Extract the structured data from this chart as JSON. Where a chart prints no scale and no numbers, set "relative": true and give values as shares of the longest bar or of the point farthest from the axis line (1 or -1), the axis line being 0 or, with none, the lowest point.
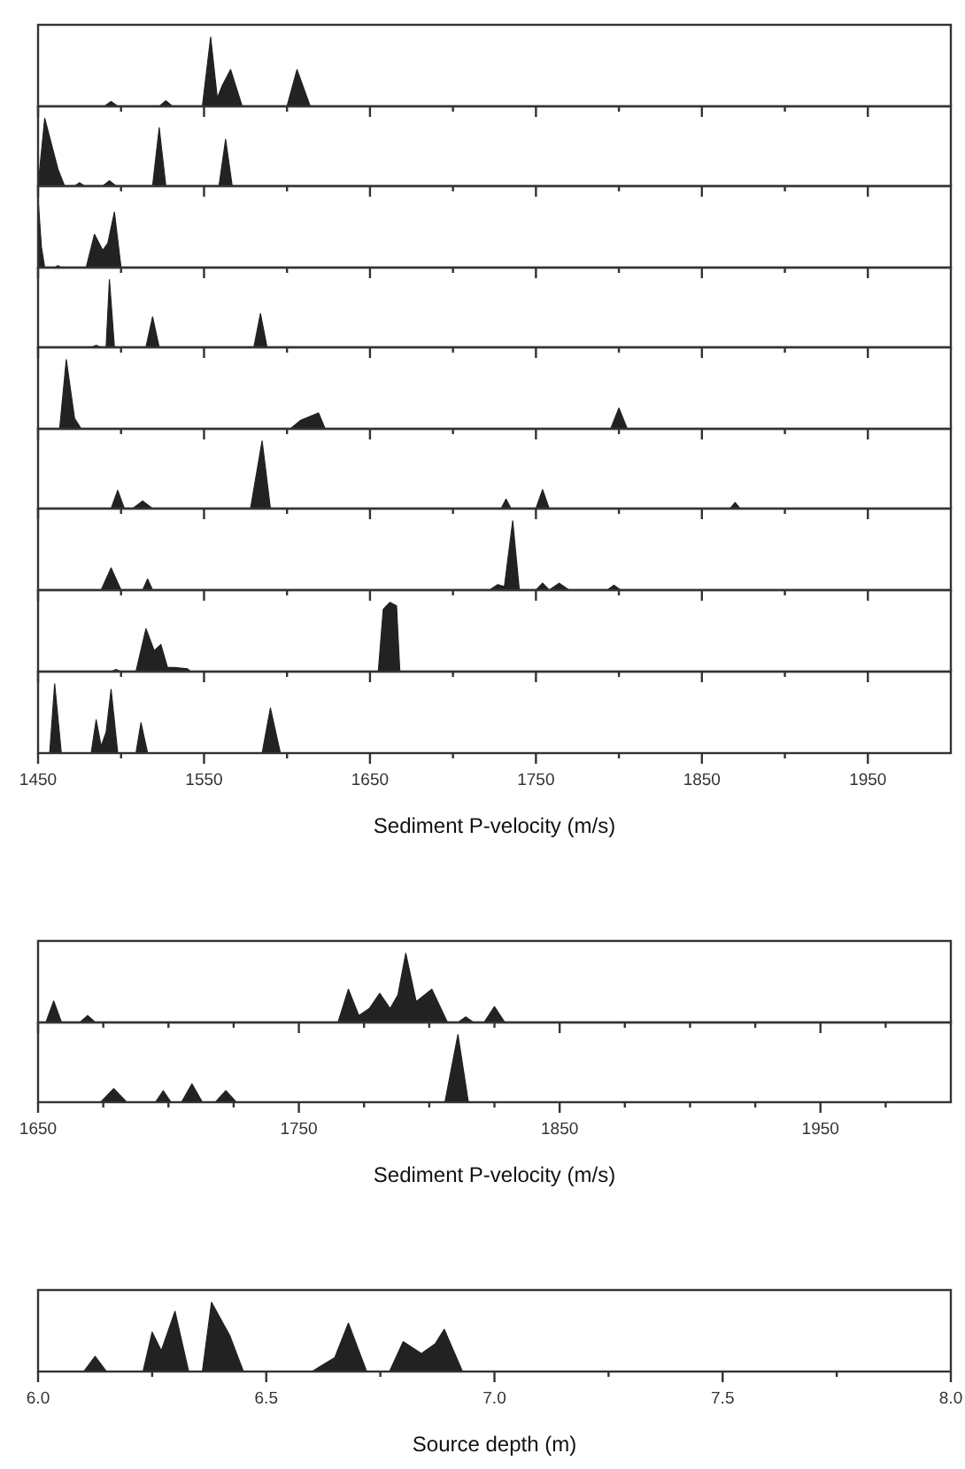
{
  "chart_data": [
    {
      "type": "area",
      "relative": true,
      "color": "#222222",
      "xlim": [
        1450,
        2000
      ],
      "xticks": [
        1450,
        {
          "value": 1500,
          "label": null
        },
        1550,
        {
          "value": 1600,
          "label": null
        },
        1650,
        {
          "value": 1700,
          "label": null
        },
        1750,
        {
          "value": 1800,
          "label": null
        },
        1850,
        {
          "value": 1900,
          "label": null
        },
        1950
      ],
      "tick_labels": false,
      "x": [
        1450,
        1490,
        1494,
        1498,
        1523,
        1527,
        1531,
        1549,
        1554,
        1558,
        1561,
        1566,
        1573,
        1600,
        1606,
        1614,
        2000
      ],
      "values": [
        0,
        0,
        0.07,
        0,
        0,
        0.08,
        0,
        0,
        1,
        0.12,
        0.3,
        0.53,
        0,
        0,
        0.53,
        0,
        0
      ]
    },
    {
      "type": "area",
      "relative": true,
      "color": "#222222",
      "xlim": [
        1450,
        2000
      ],
      "xticks": [
        1450,
        {
          "value": 1500,
          "label": null
        },
        1550,
        {
          "value": 1600,
          "label": null
        },
        1650,
        {
          "value": 1700,
          "label": null
        },
        1750,
        {
          "value": 1800,
          "label": null
        },
        1850,
        {
          "value": 1900,
          "label": null
        },
        1950
      ],
      "tick_labels": false,
      "x": [
        1450,
        1454,
        1462,
        1466,
        1472,
        1475,
        1478,
        1489,
        1493,
        1497,
        1519,
        1523,
        1527,
        1559,
        1563,
        1567,
        2000
      ],
      "values": [
        0,
        1,
        0.25,
        0,
        0,
        0.05,
        0,
        0,
        0.08,
        0,
        0,
        0.86,
        0,
        0,
        0.69,
        0,
        0
      ]
    },
    {
      "type": "area",
      "relative": true,
      "color": "#222222",
      "xlim": [
        1450,
        2000
      ],
      "xticks": [
        1450,
        {
          "value": 1500,
          "label": null
        },
        1550,
        {
          "value": 1600,
          "label": null
        },
        1650,
        {
          "value": 1700,
          "label": null
        },
        1750,
        {
          "value": 1800,
          "label": null
        },
        1850,
        {
          "value": 1900,
          "label": null
        },
        1950
      ],
      "tick_labels": false,
      "x": [
        1450,
        1452,
        1454,
        1460,
        1462,
        1464,
        1479,
        1484,
        1489,
        1492,
        1496,
        1500,
        2000
      ],
      "values": [
        1,
        0.3,
        0,
        0,
        0.03,
        0,
        0,
        0.48,
        0.25,
        0.35,
        0.8,
        0,
        0
      ]
    },
    {
      "type": "area",
      "relative": true,
      "color": "#222222",
      "xlim": [
        1450,
        2000
      ],
      "xticks": [
        1450,
        {
          "value": 1500,
          "label": null
        },
        1550,
        {
          "value": 1600,
          "label": null
        },
        1650,
        {
          "value": 1700,
          "label": null
        },
        1750,
        {
          "value": 1800,
          "label": null
        },
        1850,
        {
          "value": 1900,
          "label": null
        },
        1950
      ],
      "tick_labels": false,
      "x": [
        1450,
        1482,
        1485,
        1488,
        1491,
        1493,
        1496,
        1515,
        1519,
        1523,
        1580,
        1584,
        1588,
        2000
      ],
      "values": [
        0,
        0,
        0.03,
        0,
        0,
        1,
        0,
        0,
        0.45,
        0,
        0,
        0.5,
        0,
        0
      ]
    },
    {
      "type": "area",
      "relative": true,
      "color": "#222222",
      "xlim": [
        1450,
        2000
      ],
      "xticks": [
        1450,
        {
          "value": 1500,
          "label": null
        },
        1550,
        {
          "value": 1600,
          "label": null
        },
        1650,
        {
          "value": 1700,
          "label": null
        },
        1750,
        {
          "value": 1800,
          "label": null
        },
        1850,
        {
          "value": 1900,
          "label": null
        },
        1950
      ],
      "tick_labels": false,
      "x": [
        1450,
        1463,
        1467,
        1472,
        1476,
        1602,
        1608,
        1619,
        1623,
        1795,
        1800,
        1805,
        2000
      ],
      "values": [
        0,
        0,
        1,
        0.15,
        0,
        0,
        0.12,
        0.23,
        0,
        0,
        0.3,
        0,
        0
      ]
    },
    {
      "type": "area",
      "relative": true,
      "color": "#222222",
      "xlim": [
        1450,
        2000
      ],
      "xticks": [
        1450,
        {
          "value": 1500,
          "label": null
        },
        1550,
        {
          "value": 1600,
          "label": null
        },
        1650,
        {
          "value": 1700,
          "label": null
        },
        1750,
        {
          "value": 1800,
          "label": null
        },
        1850,
        {
          "value": 1900,
          "label": null
        },
        1950
      ],
      "tick_labels": false,
      "x": [
        1450,
        1494,
        1498,
        1502,
        1507,
        1513,
        1519,
        1578,
        1585,
        1590,
        1729,
        1732,
        1735,
        1750,
        1754,
        1758,
        1867,
        1870,
        1873,
        2000
      ],
      "values": [
        0,
        0,
        0.27,
        0,
        0,
        0.11,
        0,
        0,
        1,
        0,
        0,
        0.14,
        0,
        0,
        0.28,
        0,
        0,
        0.09,
        0,
        0
      ]
    },
    {
      "type": "area",
      "relative": true,
      "color": "#222222",
      "xlim": [
        1450,
        2000
      ],
      "xticks": [
        1450,
        {
          "value": 1500,
          "label": null
        },
        1550,
        {
          "value": 1600,
          "label": null
        },
        1650,
        {
          "value": 1700,
          "label": null
        },
        1750,
        {
          "value": 1800,
          "label": null
        },
        1850,
        {
          "value": 1900,
          "label": null
        },
        1950
      ],
      "tick_labels": false,
      "x": [
        1450,
        1488,
        1494,
        1500,
        1513,
        1516,
        1519,
        1722,
        1727,
        1731,
        1736,
        1740,
        1750,
        1754,
        1758,
        1764,
        1770,
        1793,
        1797,
        1801,
        2000
      ],
      "values": [
        0,
        0,
        0.32,
        0,
        0,
        0.16,
        0,
        0,
        0.08,
        0.05,
        1,
        0,
        0,
        0.1,
        0,
        0.1,
        0,
        0,
        0.07,
        0,
        0
      ]
    },
    {
      "type": "area",
      "relative": true,
      "color": "#222222",
      "xlim": [
        1450,
        2000
      ],
      "xticks": [
        1450,
        {
          "value": 1500,
          "label": null
        },
        1550,
        {
          "value": 1600,
          "label": null
        },
        1650,
        {
          "value": 1700,
          "label": null
        },
        1750,
        {
          "value": 1800,
          "label": null
        },
        1850,
        {
          "value": 1900,
          "label": null
        },
        1950
      ],
      "tick_labels": false,
      "x": [
        1450,
        1494,
        1497,
        1500,
        1509,
        1515,
        1520,
        1524,
        1528,
        1532,
        1536,
        1540,
        1542,
        1655,
        1658,
        1662,
        1666,
        1668,
        2000
      ],
      "values": [
        0,
        0,
        0.03,
        0,
        0,
        0.62,
        0.3,
        0.39,
        0.06,
        0.06,
        0.05,
        0.04,
        0,
        0,
        0.9,
        1,
        0.95,
        0,
        0
      ]
    },
    {
      "type": "area",
      "relative": true,
      "color": "#222222",
      "xlim": [
        1450,
        2000
      ],
      "xticks": [
        1450,
        {
          "value": 1500,
          "label": null
        },
        1550,
        {
          "value": 1600,
          "label": null
        },
        1650,
        {
          "value": 1700,
          "label": null
        },
        1750,
        {
          "value": 1800,
          "label": null
        },
        1850,
        {
          "value": 1900,
          "label": null
        },
        1950
      ],
      "tick_labels": "x",
      "xlabel": "Sediment P-velocity (m/s)",
      "x": [
        1450,
        1457,
        1460,
        1464,
        1482,
        1485,
        1488,
        1491,
        1494,
        1498,
        1509,
        1512,
        1516,
        1585,
        1590,
        1596,
        2000
      ],
      "values": [
        0,
        0,
        1,
        0,
        0,
        0.48,
        0.1,
        0.3,
        0.92,
        0,
        0,
        0.44,
        0,
        0,
        0.65,
        0,
        0
      ]
    },
    {
      "type": "area",
      "relative": true,
      "color": "#222222",
      "xlim": [
        1650,
        2000
      ],
      "xticks": [
        1650,
        {
          "value": 1675,
          "label": null
        },
        {
          "value": 1700,
          "label": null
        },
        {
          "value": 1725,
          "label": null
        },
        1750,
        {
          "value": 1775,
          "label": null
        },
        {
          "value": 1800,
          "label": null
        },
        {
          "value": 1825,
          "label": null
        },
        1850,
        {
          "value": 1875,
          "label": null
        },
        {
          "value": 1900,
          "label": null
        },
        {
          "value": 1925,
          "label": null
        },
        1950,
        {
          "value": 1975,
          "label": null
        }
      ],
      "tick_labels": false,
      "x": [
        1650,
        1653,
        1656,
        1659,
        1666,
        1669,
        1672,
        1765,
        1769,
        1773,
        1777,
        1781,
        1785,
        1788,
        1791,
        1795,
        1801,
        1807,
        1811,
        1814,
        1817,
        1821,
        1825,
        1829,
        2000
      ],
      "values": [
        0,
        0,
        0.31,
        0,
        0,
        0.1,
        0,
        0,
        0.48,
        0.1,
        0.2,
        0.42,
        0.2,
        0.4,
        1,
        0.3,
        0.48,
        0,
        0,
        0.08,
        0,
        0,
        0.23,
        0,
        0
      ]
    },
    {
      "type": "area",
      "relative": true,
      "color": "#222222",
      "xlim": [
        1650,
        2000
      ],
      "xticks": [
        1650,
        {
          "value": 1675,
          "label": null
        },
        {
          "value": 1700,
          "label": null
        },
        {
          "value": 1725,
          "label": null
        },
        1750,
        {
          "value": 1775,
          "label": null
        },
        {
          "value": 1800,
          "label": null
        },
        {
          "value": 1825,
          "label": null
        },
        1850,
        {
          "value": 1875,
          "label": null
        },
        {
          "value": 1900,
          "label": null
        },
        {
          "value": 1925,
          "label": null
        },
        1950,
        {
          "value": 1975,
          "label": null
        }
      ],
      "tick_labels": "x",
      "xlabel": "Sediment P-velocity (m/s)",
      "x": [
        1650,
        1674,
        1679,
        1684,
        1695,
        1698,
        1701,
        1705,
        1709,
        1713,
        1718,
        1722,
        1726,
        1806,
        1811,
        1815,
        2000
      ],
      "values": [
        0,
        0,
        0.2,
        0,
        0,
        0.17,
        0,
        0,
        0.27,
        0,
        0,
        0.17,
        0,
        0,
        1,
        0,
        0
      ]
    },
    {
      "type": "area",
      "relative": true,
      "color": "#222222",
      "xlim": [
        6,
        8
      ],
      "xticks": [
        {
          "value": 6,
          "label": "6.0"
        },
        {
          "value": 6.25,
          "label": null
        },
        6.5,
        {
          "value": 6.75,
          "label": null
        },
        {
          "value": 7,
          "label": "7.0"
        },
        {
          "value": 7.25,
          "label": null
        },
        7.5,
        {
          "value": 7.75,
          "label": null
        },
        {
          "value": 8,
          "label": "8.0"
        }
      ],
      "tick_labels": "x",
      "xlabel": "Source depth (m)",
      "x": [
        6,
        6.1,
        6.125,
        6.15,
        6.23,
        6.25,
        6.27,
        6.3,
        6.33,
        6.36,
        6.38,
        6.42,
        6.45,
        6.6,
        6.65,
        6.68,
        6.72,
        6.77,
        6.8,
        6.84,
        6.87,
        6.89,
        6.93,
        8
      ],
      "values": [
        0,
        0,
        0.22,
        0,
        0,
        0.57,
        0.3,
        0.87,
        0,
        0,
        1,
        0.52,
        0,
        0,
        0.2,
        0.7,
        0,
        0,
        0.43,
        0.26,
        0.4,
        0.61,
        0,
        0
      ]
    }
  ]
}
